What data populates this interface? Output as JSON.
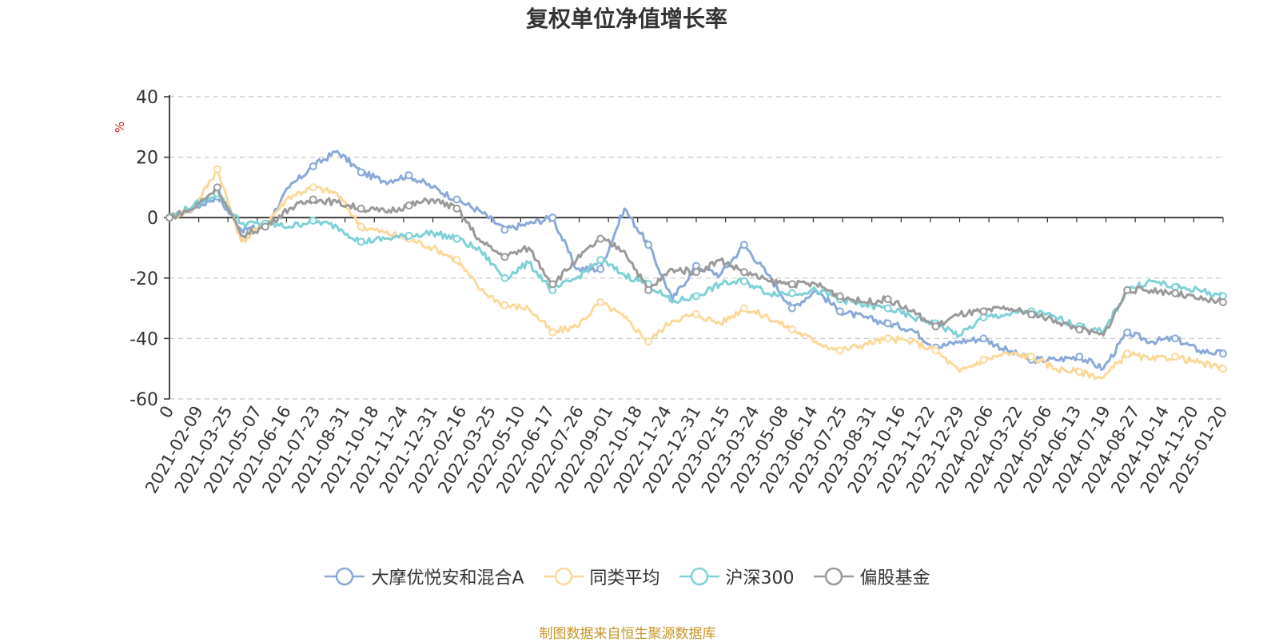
{
  "chart_data": {
    "type": "line",
    "title": "复权单位净值增长率",
    "ylabel": "%",
    "ylim": [
      -60,
      40
    ],
    "yticks": [
      40,
      20,
      0,
      -20,
      -40,
      -60
    ],
    "grid": true,
    "legend_position": "bottom",
    "x_tick_labels": [
      "0",
      "2021-02-09",
      "2021-03-25",
      "2021-05-07",
      "2021-06-16",
      "2021-07-23",
      "2021-08-31",
      "2021-10-18",
      "2021-11-24",
      "2021-12-31",
      "2022-02-16",
      "2022-03-25",
      "2022-05-10",
      "2022-06-17",
      "2022-07-26",
      "2022-09-01",
      "2022-10-18",
      "2022-11-24",
      "2022-12-31",
      "2023-02-15",
      "2023-03-24",
      "2023-05-08",
      "2023-06-14",
      "2023-07-25",
      "2023-08-31",
      "2023-10-16",
      "2023-11-22",
      "2023-12-29",
      "2024-02-06",
      "2024-03-22",
      "2024-05-06",
      "2024-06-13",
      "2024-07-19",
      "2024-08-27",
      "2024-10-14",
      "2024-11-20",
      "2025-01-20"
    ],
    "series": [
      {
        "name": "大摩优悦安和混合A",
        "color": "#8aa9d8",
        "values": [
          0,
          3,
          7,
          -4,
          -3,
          10,
          17,
          22,
          15,
          12,
          14,
          10,
          6,
          2,
          -4,
          -2,
          0,
          -17,
          -17,
          3,
          -9,
          -27,
          -16,
          -19,
          -9,
          -19,
          -30,
          -24,
          -31,
          -33,
          -35,
          -37,
          -43,
          -41,
          -40,
          -44,
          -47,
          -47,
          -46,
          -50,
          -38,
          -41,
          -40,
          -44,
          -45
        ]
      },
      {
        "name": "同类平均",
        "color": "#fcd89a",
        "values": [
          0,
          3,
          16,
          -8,
          -2,
          7,
          10,
          8,
          -3,
          -5,
          -7,
          -10,
          -14,
          -24,
          -29,
          -30,
          -38,
          -36,
          -28,
          -33,
          -41,
          -34,
          -32,
          -35,
          -30,
          -33,
          -37,
          -41,
          -44,
          -42,
          -40,
          -41,
          -44,
          -51,
          -47,
          -45,
          -46,
          -50,
          -51,
          -53,
          -45,
          -47,
          -46,
          -48,
          -50
        ]
      },
      {
        "name": "沪深300",
        "color": "#7fd1d6",
        "values": [
          0,
          4,
          8,
          -2,
          -2,
          -3,
          -1,
          -3,
          -8,
          -7,
          -6,
          -5,
          -7,
          -11,
          -20,
          -15,
          -24,
          -20,
          -14,
          -19,
          -22,
          -28,
          -26,
          -22,
          -21,
          -25,
          -25,
          -24,
          -27,
          -29,
          -30,
          -33,
          -35,
          -39,
          -33,
          -32,
          -31,
          -33,
          -36,
          -38,
          -24,
          -21,
          -23,
          -24,
          -26
        ]
      },
      {
        "name": "偏股基金",
        "color": "#9a9a9a",
        "values": [
          0,
          3,
          10,
          -6,
          -3,
          3,
          6,
          5,
          3,
          2,
          4,
          6,
          3,
          -8,
          -13,
          -10,
          -22,
          -14,
          -7,
          -11,
          -24,
          -17,
          -18,
          -14,
          -18,
          -21,
          -22,
          -22,
          -26,
          -28,
          -27,
          -31,
          -36,
          -32,
          -31,
          -30,
          -32,
          -34,
          -37,
          -39,
          -24,
          -24,
          -25,
          -27,
          -28
        ]
      }
    ]
  },
  "source_text": "制图数据来自恒生聚源数据库"
}
